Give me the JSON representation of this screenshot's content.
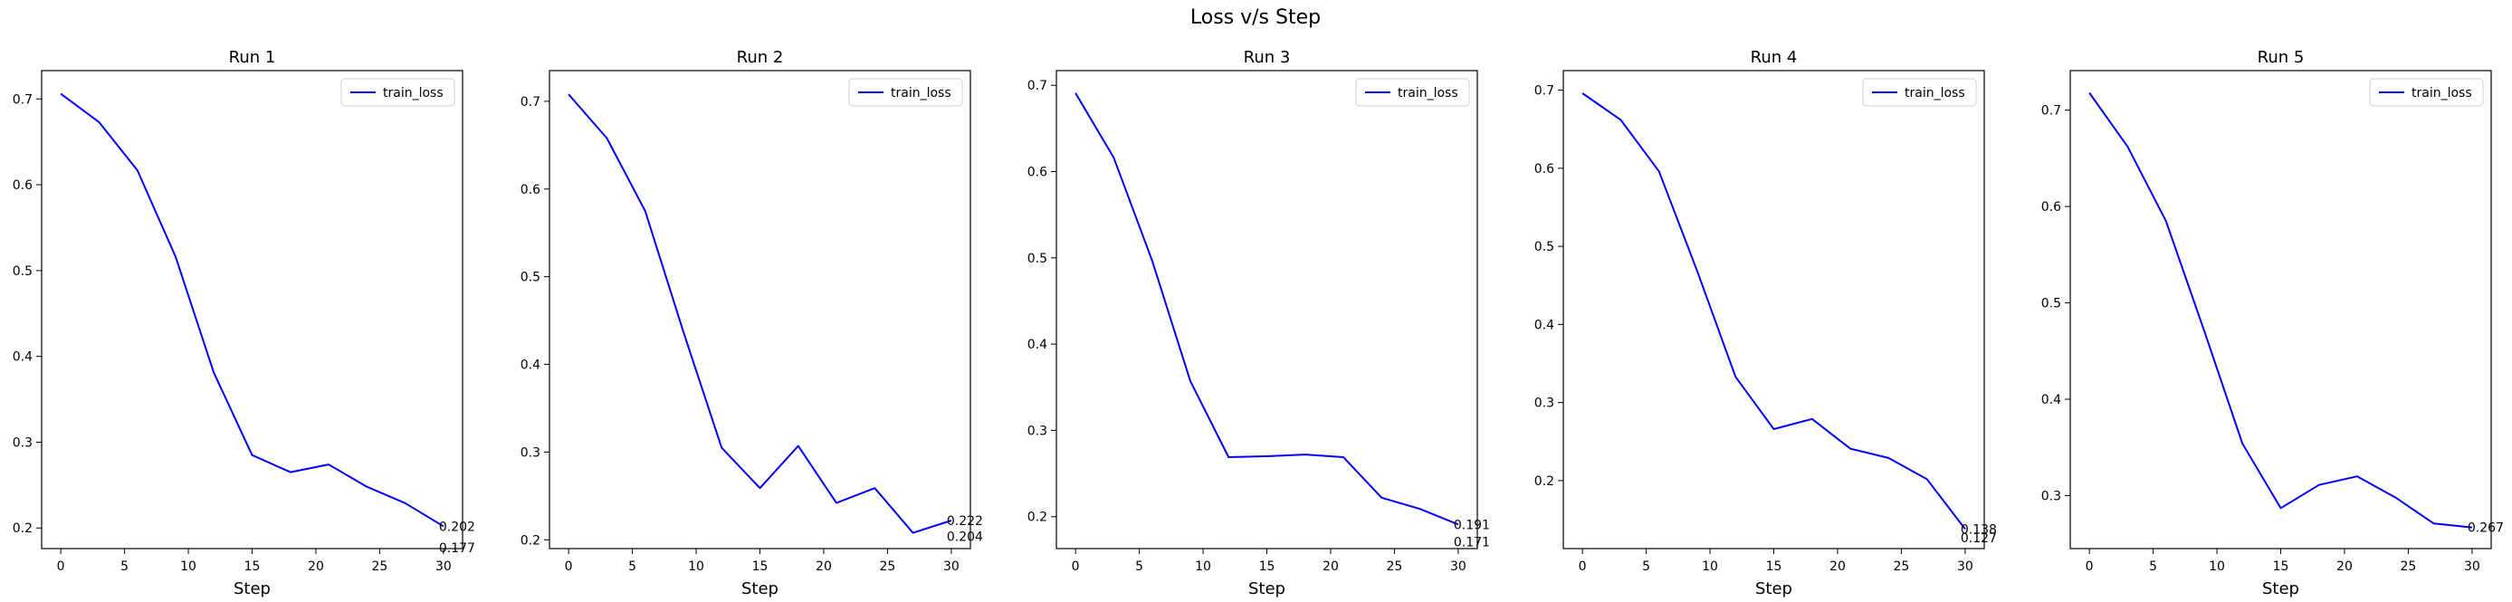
{
  "figure": {
    "title": "Loss v/s Step"
  },
  "colors": {
    "line": "#0000ff",
    "axis": "#000000",
    "background": "#ffffff"
  },
  "chart_data": [
    {
      "type": "line",
      "title": "Run 1",
      "xlabel": "Step",
      "ylabel": "",
      "xlim": [
        -1.5,
        31.5
      ],
      "ylim": [
        0.176,
        0.733
      ],
      "xticks": [
        "0",
        "5",
        "10",
        "15",
        "20",
        "25",
        "30"
      ],
      "yticks": [
        "0.2",
        "0.3",
        "0.4",
        "0.5",
        "0.6",
        "0.7"
      ],
      "legend_position": "top-right",
      "grid": false,
      "series": [
        {
          "name": "train_loss",
          "x": [
            0,
            3,
            6,
            9,
            12,
            15,
            18,
            21,
            24,
            27,
            30
          ],
          "y": [
            0.706,
            0.673,
            0.617,
            0.516,
            0.381,
            0.285,
            0.265,
            0.274,
            0.248,
            0.229,
            0.202
          ]
        }
      ],
      "annotations": [
        {
          "x": 30,
          "y": 0.202,
          "text": "0.202"
        },
        {
          "x": 30,
          "y": 0.177,
          "text": "0.177"
        }
      ]
    },
    {
      "type": "line",
      "title": "Run 2",
      "xlabel": "Step",
      "ylabel": "",
      "xlim": [
        -1.5,
        31.5
      ],
      "ylim": [
        0.19,
        0.735
      ],
      "xticks": [
        "0",
        "5",
        "10",
        "15",
        "20",
        "25",
        "30"
      ],
      "yticks": [
        "0.2",
        "0.3",
        "0.4",
        "0.5",
        "0.6",
        "0.7"
      ],
      "legend_position": "top-right",
      "grid": false,
      "series": [
        {
          "name": "train_loss",
          "x": [
            0,
            3,
            6,
            9,
            12,
            15,
            18,
            21,
            24,
            27,
            30
          ],
          "y": [
            0.708,
            0.658,
            0.575,
            0.437,
            0.305,
            0.259,
            0.307,
            0.242,
            0.259,
            0.208,
            0.222
          ]
        }
      ],
      "annotations": [
        {
          "x": 30,
          "y": 0.222,
          "text": "0.222"
        },
        {
          "x": 30,
          "y": 0.204,
          "text": "0.204"
        }
      ]
    },
    {
      "type": "line",
      "title": "Run 3",
      "xlabel": "Step",
      "ylabel": "",
      "xlim": [
        -1.5,
        31.5
      ],
      "ylim": [
        0.163,
        0.717
      ],
      "xticks": [
        "0",
        "5",
        "10",
        "15",
        "20",
        "25",
        "30"
      ],
      "yticks": [
        "0.2",
        "0.3",
        "0.4",
        "0.5",
        "0.6",
        "0.7"
      ],
      "legend_position": "top-right",
      "grid": false,
      "series": [
        {
          "name": "train_loss",
          "x": [
            0,
            3,
            6,
            9,
            12,
            15,
            18,
            21,
            24,
            27,
            30
          ],
          "y": [
            0.691,
            0.616,
            0.497,
            0.357,
            0.269,
            0.27,
            0.272,
            0.269,
            0.222,
            0.209,
            0.191
          ]
        }
      ],
      "annotations": [
        {
          "x": 30,
          "y": 0.191,
          "text": "0.191"
        },
        {
          "x": 30,
          "y": 0.171,
          "text": "0.171"
        }
      ]
    },
    {
      "type": "line",
      "title": "Run 4",
      "xlabel": "Step",
      "ylabel": "",
      "xlim": [
        -1.5,
        31.5
      ],
      "ylim": [
        0.113,
        0.725
      ],
      "xticks": [
        "0",
        "5",
        "10",
        "15",
        "20",
        "25",
        "30"
      ],
      "yticks": [
        "0.2",
        "0.3",
        "0.4",
        "0.5",
        "0.6",
        "0.7"
      ],
      "legend_position": "top-right",
      "grid": false,
      "series": [
        {
          "name": "train_loss",
          "x": [
            0,
            3,
            6,
            9,
            12,
            15,
            18,
            21,
            24,
            27,
            30
          ],
          "y": [
            0.696,
            0.662,
            0.596,
            0.468,
            0.333,
            0.266,
            0.279,
            0.241,
            0.229,
            0.202,
            0.138
          ]
        }
      ],
      "annotations": [
        {
          "x": 30,
          "y": 0.138,
          "text": "0.138"
        },
        {
          "x": 30,
          "y": 0.127,
          "text": "0.127"
        }
      ]
    },
    {
      "type": "line",
      "title": "Run 5",
      "xlabel": "Step",
      "ylabel": "",
      "xlim": [
        -1.5,
        31.5
      ],
      "ylim": [
        0.245,
        0.741
      ],
      "xticks": [
        "0",
        "5",
        "10",
        "15",
        "20",
        "25",
        "30"
      ],
      "yticks": [
        "0.3",
        "0.4",
        "0.5",
        "0.6",
        "0.7"
      ],
      "legend_position": "top-right",
      "grid": false,
      "series": [
        {
          "name": "train_loss",
          "x": [
            0,
            3,
            6,
            9,
            12,
            15,
            18,
            21,
            24,
            27,
            30
          ],
          "y": [
            0.718,
            0.662,
            0.585,
            0.471,
            0.354,
            0.287,
            0.311,
            0.32,
            0.298,
            0.271,
            0.267
          ]
        }
      ],
      "annotations": [
        {
          "x": 30,
          "y": 0.267,
          "text": "0.267"
        }
      ]
    }
  ]
}
